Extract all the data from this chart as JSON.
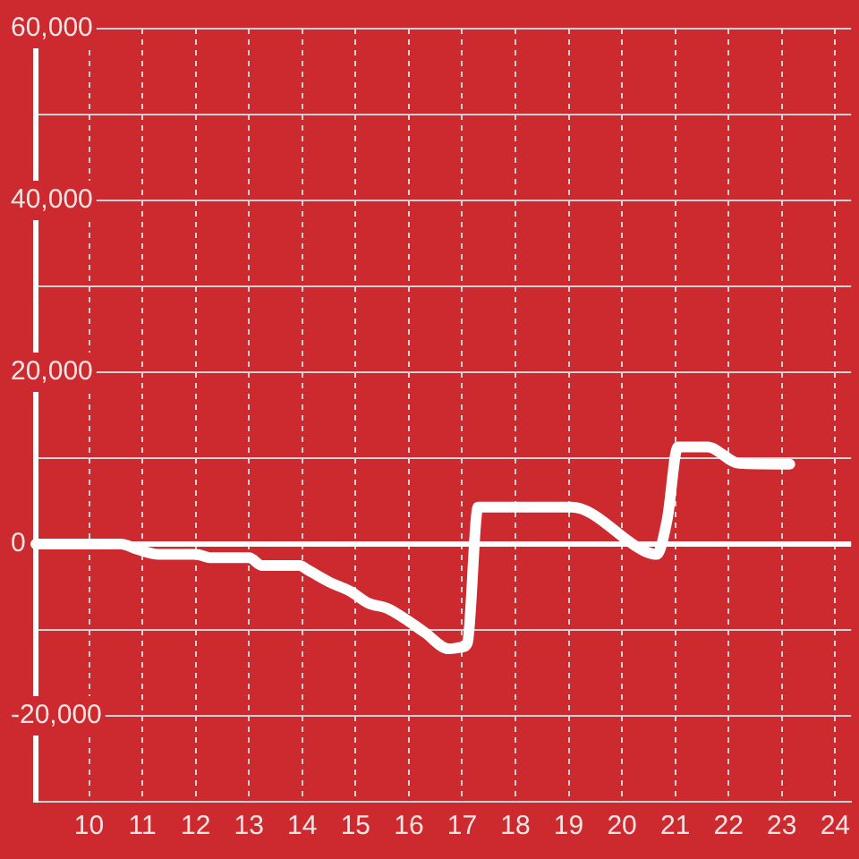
{
  "chart_data": {
    "type": "line",
    "x": [
      9,
      10.6,
      10.9,
      11.3,
      12.0,
      12.3,
      13.0,
      13.25,
      13.95,
      14.1,
      14.5,
      14.9,
      15.25,
      15.6,
      16.0,
      16.3,
      16.75,
      17.0,
      17.1,
      17.3,
      19.05,
      20.45,
      20.65,
      20.85,
      21.05,
      21.6,
      22.2,
      23.15
    ],
    "values": [
      0,
      0,
      -600,
      -1200,
      -1200,
      -1600,
      -1600,
      -2500,
      -2500,
      -3000,
      -4400,
      -5500,
      -6900,
      -7500,
      -9000,
      -10300,
      -12200,
      -12000,
      -11500,
      4300,
      4300,
      -900,
      -1200,
      2900,
      11300,
      11300,
      9400,
      9300
    ],
    "color": "#ffffff",
    "xlim": [
      9,
      24.3
    ],
    "xticks": [
      10,
      11,
      12,
      13,
      14,
      15,
      16,
      17,
      18,
      19,
      20,
      21,
      22,
      23,
      24
    ],
    "ylim": [
      -30000,
      60000
    ],
    "yticks": [
      {
        "value": -30000,
        "label": null
      },
      {
        "value": -20000,
        "label": "-20,000"
      },
      {
        "value": -10000,
        "label": null
      },
      {
        "value": 0,
        "label": "0"
      },
      {
        "value": 10000,
        "label": null
      },
      {
        "value": 20000,
        "label": "20,000"
      },
      {
        "value": 30000,
        "label": null
      },
      {
        "value": 40000,
        "label": "40,000"
      },
      {
        "value": 50000,
        "label": null
      },
      {
        "value": 60000,
        "label": "60,000"
      }
    ],
    "grid": true,
    "legend": false,
    "ref_lines": [
      {
        "axis": "y",
        "value": 0,
        "color": "#ffffff"
      }
    ],
    "line_style": "solid",
    "marker": "none"
  }
}
